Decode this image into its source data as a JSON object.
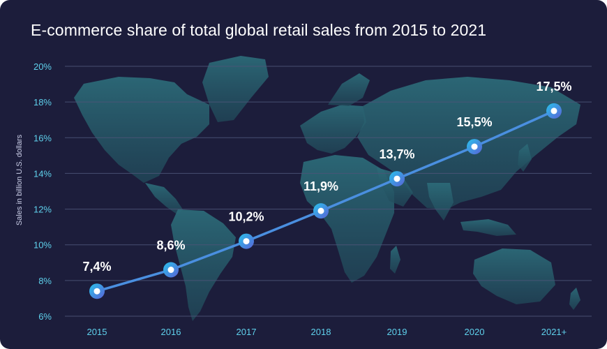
{
  "chart_data": {
    "type": "line",
    "title": "E-commerce share of total global retail sales from 2015 to 2021",
    "ylabel": "Sales in billion U.S. dollars",
    "xlabel": "",
    "categories": [
      "2015",
      "2016",
      "2017",
      "2018",
      "2019",
      "2020",
      "2021+"
    ],
    "values": [
      7.4,
      8.6,
      10.2,
      11.9,
      13.7,
      15.5,
      17.5
    ],
    "value_labels": [
      "7,4%",
      "8,6%",
      "10,2%",
      "11,9%",
      "13,7%",
      "15,5%",
      "17,5%"
    ],
    "yticks": [
      6,
      8,
      10,
      12,
      14,
      16,
      18,
      20
    ],
    "ytick_labels": [
      "6%",
      "8%",
      "10%",
      "12%",
      "14%",
      "16%",
      "18%",
      "20%"
    ],
    "ylim": [
      6,
      20
    ],
    "grid": true,
    "legend": "none"
  },
  "colors": {
    "background": "#1c1d3b",
    "map": "#2a5f6e",
    "line": "#4a8fe0",
    "grid": "#4d5478",
    "tick_text": "#5fd1ec",
    "marker_ring_start": "#29c3ec",
    "marker_ring_end": "#5a62d6"
  }
}
